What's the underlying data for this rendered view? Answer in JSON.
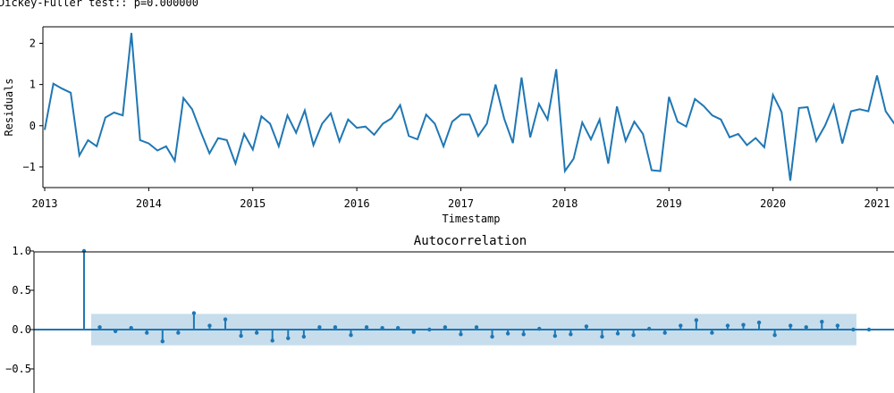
{
  "header_text": "Dickey-Fuller test:: p=0.000000",
  "colors": {
    "series": "#1f77b4",
    "band": "#1f77b4",
    "axis": "#000000"
  },
  "chart_data": [
    {
      "type": "line",
      "title": "",
      "xlabel": "Timestamp",
      "ylabel": "Residuals",
      "ylim": [
        -1.5,
        2.4
      ],
      "xlim": [
        "2013-01",
        "2021-02"
      ],
      "yticks": [
        "−1",
        "0",
        "1",
        "2"
      ],
      "xticks": [
        "2013",
        "2014",
        "2015",
        "2016",
        "2017",
        "2018",
        "2019",
        "2020",
        "2021"
      ],
      "grid": false,
      "series": [
        {
          "x_start": "2013-01",
          "x_step": "1 month",
          "values": [
            -0.1,
            1.02,
            0.9,
            0.8,
            -0.72,
            -0.35,
            -0.5,
            0.2,
            0.32,
            0.25,
            2.25,
            -0.35,
            -0.43,
            -0.6,
            -0.5,
            -0.85,
            0.67,
            0.4,
            -0.15,
            -0.67,
            -0.3,
            -0.35,
            -0.92,
            -0.2,
            -0.58,
            0.23,
            0.05,
            -0.5,
            0.25,
            -0.17,
            0.37,
            -0.47,
            0.05,
            0.3,
            -0.38,
            0.15,
            -0.05,
            -0.02,
            -0.22,
            0.05,
            0.18,
            0.5,
            -0.25,
            -0.33,
            0.27,
            0.05,
            -0.5,
            0.1,
            0.27,
            0.27,
            -0.25,
            0.05,
            1.0,
            0.17,
            -0.42,
            1.17,
            -0.28,
            0.53,
            0.15,
            1.37,
            -1.1,
            -0.8,
            0.08,
            -0.33,
            0.15,
            -0.92,
            0.47,
            -0.37,
            0.1,
            -0.2,
            -1.08,
            -1.1,
            0.7,
            0.1,
            -0.02,
            0.65,
            0.48,
            0.25,
            0.15,
            -0.28,
            -0.2,
            -0.47,
            -0.3,
            -0.52,
            0.75,
            0.33,
            -1.33,
            0.43,
            0.45,
            -0.37,
            0.0,
            0.5,
            -0.43,
            0.35,
            0.4,
            0.35,
            1.22,
            0.35,
            0.05
          ]
        }
      ]
    },
    {
      "type": "stem",
      "title": "Autocorrelation",
      "xlabel": "",
      "ylabel": "",
      "ylim": [
        -0.8,
        1.0
      ],
      "yticks": [
        "−0.5",
        "0.0",
        "0.5",
        "1.0"
      ],
      "xticks": [],
      "grid": false,
      "confidence_band": [
        -0.2,
        0.2
      ],
      "lags": [
        0,
        1,
        2,
        3,
        4,
        5,
        6,
        7,
        8,
        9,
        10,
        11,
        12,
        13,
        14,
        15,
        16,
        17,
        18,
        19,
        20,
        21,
        22,
        23,
        24,
        25,
        26,
        27,
        28,
        29,
        30,
        31,
        32,
        33,
        34,
        35,
        36,
        37,
        38,
        39,
        40,
        41,
        42,
        43,
        44,
        45,
        46,
        47,
        48,
        49,
        50
      ],
      "values": [
        1.0,
        0.03,
        -0.02,
        0.02,
        -0.04,
        -0.15,
        -0.04,
        0.21,
        0.05,
        0.13,
        -0.08,
        -0.04,
        -0.14,
        -0.11,
        -0.09,
        0.03,
        0.03,
        -0.07,
        0.03,
        0.02,
        0.02,
        -0.03,
        0.0,
        0.03,
        -0.06,
        0.03,
        -0.09,
        -0.05,
        -0.06,
        0.01,
        -0.08,
        -0.06,
        0.04,
        -0.09,
        -0.05,
        -0.07,
        0.01,
        -0.04,
        0.05,
        0.12,
        -0.04,
        0.05,
        0.06,
        0.09,
        -0.07,
        0.05,
        0.03,
        0.1,
        0.05,
        0.0,
        0.0
      ]
    }
  ]
}
